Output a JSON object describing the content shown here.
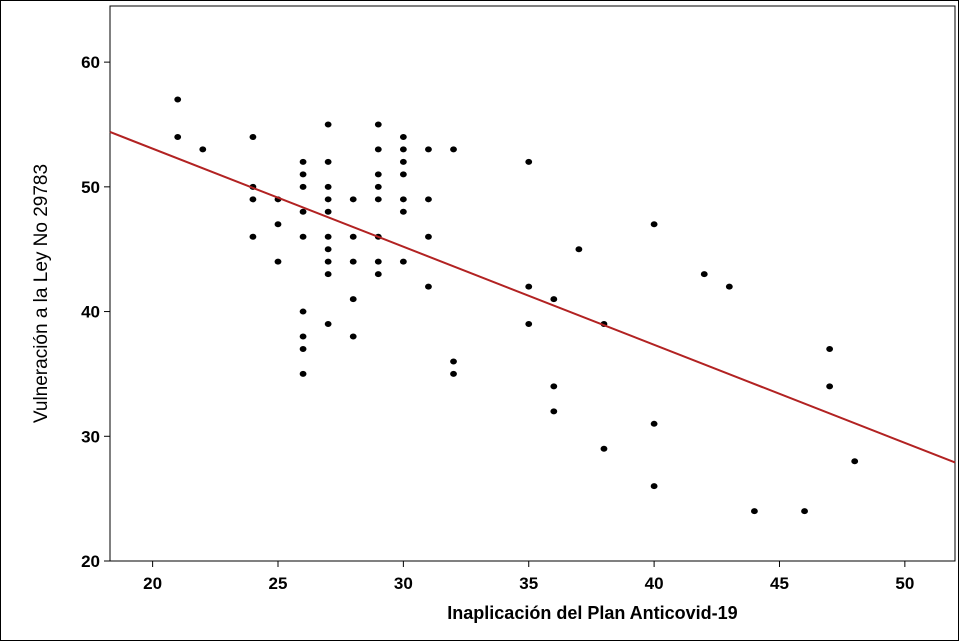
{
  "chart_data": {
    "type": "scatter",
    "xlabel": "Inaplicación del Plan Anticovid-19",
    "ylabel": "Vulneración a la Ley No 29783",
    "xlim": [
      18.3,
      52
    ],
    "ylim": [
      20,
      64.5
    ],
    "xticks": [
      20,
      25,
      30,
      35,
      40,
      45,
      50
    ],
    "yticks": [
      20,
      30,
      40,
      50,
      60
    ],
    "grid": false,
    "colors": {
      "points": "#000000",
      "fit_line": "#b22222",
      "background": "#ffffff"
    },
    "fit_line": {
      "x": [
        18.3,
        52
      ],
      "y": [
        54.4,
        27.9
      ]
    },
    "points": [
      [
        21,
        57
      ],
      [
        21,
        54
      ],
      [
        22,
        53
      ],
      [
        24,
        54
      ],
      [
        24,
        50
      ],
      [
        24,
        49
      ],
      [
        24,
        46
      ],
      [
        25,
        49
      ],
      [
        25,
        47
      ],
      [
        25,
        44
      ],
      [
        26,
        52
      ],
      [
        26,
        51
      ],
      [
        26,
        50
      ],
      [
        26,
        48
      ],
      [
        26,
        46
      ],
      [
        26,
        40
      ],
      [
        26,
        38
      ],
      [
        26,
        37
      ],
      [
        26,
        35
      ],
      [
        27,
        55
      ],
      [
        27,
        52
      ],
      [
        27,
        50
      ],
      [
        27,
        49
      ],
      [
        27,
        48
      ],
      [
        27,
        46
      ],
      [
        27,
        45
      ],
      [
        27,
        44
      ],
      [
        27,
        43
      ],
      [
        27,
        39
      ],
      [
        28,
        49
      ],
      [
        28,
        46
      ],
      [
        28,
        44
      ],
      [
        28,
        41
      ],
      [
        28,
        38
      ],
      [
        29,
        55
      ],
      [
        29,
        53
      ],
      [
        29,
        51
      ],
      [
        29,
        50
      ],
      [
        29,
        49
      ],
      [
        29,
        46
      ],
      [
        29,
        44
      ],
      [
        29,
        43
      ],
      [
        30,
        54
      ],
      [
        30,
        53
      ],
      [
        30,
        52
      ],
      [
        30,
        51
      ],
      [
        30,
        49
      ],
      [
        30,
        48
      ],
      [
        30,
        44
      ],
      [
        31,
        53
      ],
      [
        31,
        49
      ],
      [
        31,
        46
      ],
      [
        31,
        42
      ],
      [
        32,
        53
      ],
      [
        32,
        36
      ],
      [
        32,
        35
      ],
      [
        35,
        52
      ],
      [
        35,
        42
      ],
      [
        35,
        39
      ],
      [
        36,
        41
      ],
      [
        36,
        34
      ],
      [
        36,
        32
      ],
      [
        37,
        45
      ],
      [
        38,
        39
      ],
      [
        38,
        29
      ],
      [
        40,
        47
      ],
      [
        40,
        31
      ],
      [
        40,
        26
      ],
      [
        42,
        43
      ],
      [
        43,
        42
      ],
      [
        44,
        24
      ],
      [
        46,
        24
      ],
      [
        47,
        37
      ],
      [
        47,
        34
      ],
      [
        48,
        28
      ]
    ]
  }
}
